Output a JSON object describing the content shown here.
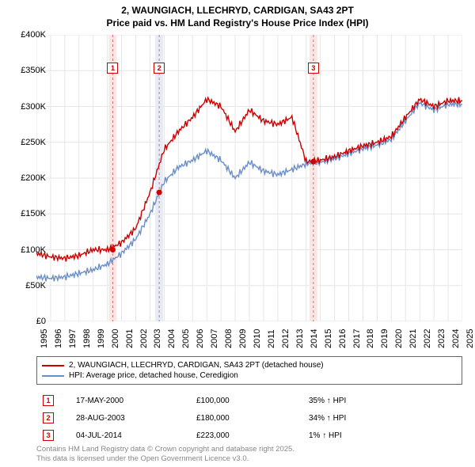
{
  "title_line1": "2, WAUNGIACH, LLECHRYD, CARDIGAN, SA43 2PT",
  "title_line2": "Price paid vs. HM Land Registry's House Price Index (HPI)",
  "chart": {
    "type": "line",
    "background_color": "#ffffff",
    "grid_color": "#e6e6e6",
    "ylim": [
      0,
      400000
    ],
    "ytick_step": 50000,
    "ytick_labels": [
      "£0",
      "£50K",
      "£100K",
      "£150K",
      "£200K",
      "£250K",
      "£300K",
      "£350K",
      "£400K"
    ],
    "x_years": [
      1995,
      1996,
      1997,
      1998,
      1999,
      2000,
      2001,
      2002,
      2003,
      2004,
      2005,
      2006,
      2007,
      2008,
      2009,
      2010,
      2011,
      2012,
      2013,
      2014,
      2015,
      2016,
      2017,
      2018,
      2019,
      2020,
      2021,
      2022,
      2023,
      2024,
      2025
    ],
    "series": [
      {
        "name": "property",
        "label": "2, WAUNGIACH, LLECHRYD, CARDIGAN, SA43 2PT (detached house)",
        "color": "#cc0000",
        "line_width": 1.4,
        "values_by_year": {
          "1995": 95000,
          "1996": 90000,
          "1997": 88000,
          "1998": 92000,
          "1999": 100000,
          "2000": 100000,
          "2001": 110000,
          "2002": 130000,
          "2003": 180000,
          "2004": 240000,
          "2005": 265000,
          "2006": 285000,
          "2007": 310000,
          "2008": 300000,
          "2009": 265000,
          "2010": 295000,
          "2011": 280000,
          "2012": 275000,
          "2013": 285000,
          "2014": 223000,
          "2015": 225000,
          "2016": 230000,
          "2017": 238000,
          "2018": 245000,
          "2019": 250000,
          "2020": 258000,
          "2021": 285000,
          "2022": 310000,
          "2023": 300000,
          "2024": 308000,
          "2025": 308000
        }
      },
      {
        "name": "hpi",
        "label": "HPI: Average price, detached house, Ceredigion",
        "color": "#6a8fc7",
        "line_width": 1.4,
        "values_by_year": {
          "1995": 62000,
          "1996": 60000,
          "1997": 62000,
          "1998": 67000,
          "1999": 72000,
          "2000": 80000,
          "2001": 95000,
          "2002": 115000,
          "2003": 150000,
          "2004": 195000,
          "2005": 215000,
          "2006": 225000,
          "2007": 238000,
          "2008": 225000,
          "2009": 200000,
          "2010": 222000,
          "2011": 210000,
          "2012": 205000,
          "2013": 212000,
          "2014": 220000,
          "2015": 222000,
          "2016": 227000,
          "2017": 234000,
          "2018": 241000,
          "2019": 246000,
          "2020": 254000,
          "2021": 280000,
          "2022": 305000,
          "2023": 295000,
          "2024": 303000,
          "2025": 303000
        }
      }
    ],
    "event_bands": [
      {
        "year": 2000.38,
        "color": "#fbe6e6"
      },
      {
        "year": 2003.65,
        "color": "#e6ecf7"
      },
      {
        "year": 2014.51,
        "color": "#fbe6e6"
      }
    ],
    "event_markers": [
      {
        "num": "1",
        "year": 2000.38,
        "y_marker": 100000,
        "marker_color": "#cc0000"
      },
      {
        "num": "2",
        "year": 2003.65,
        "y_marker": 180000,
        "marker_color": "#cc0000"
      },
      {
        "num": "3",
        "year": 2014.51,
        "y_marker": 223000,
        "marker_color": "#cc0000"
      }
    ],
    "marker_box_top_offset": 35
  },
  "legend": {
    "rows": [
      {
        "color": "#cc0000",
        "label": "2, WAUNGIACH, LLECHRYD, CARDIGAN, SA43 2PT (detached house)"
      },
      {
        "color": "#6a8fc7",
        "label": "HPI: Average price, detached house, Ceredigion"
      }
    ]
  },
  "events_table": {
    "rows": [
      {
        "num": "1",
        "date": "17-MAY-2000",
        "price": "£100,000",
        "delta": "35% ↑ HPI"
      },
      {
        "num": "2",
        "date": "28-AUG-2003",
        "price": "£180,000",
        "delta": "34% ↑ HPI"
      },
      {
        "num": "3",
        "date": "04-JUL-2014",
        "price": "£223,000",
        "delta": "1% ↑ HPI"
      }
    ]
  },
  "footer_line1": "Contains HM Land Registry data © Crown copyright and database right 2025.",
  "footer_line2": "This data is licensed under the Open Government Licence v3.0."
}
